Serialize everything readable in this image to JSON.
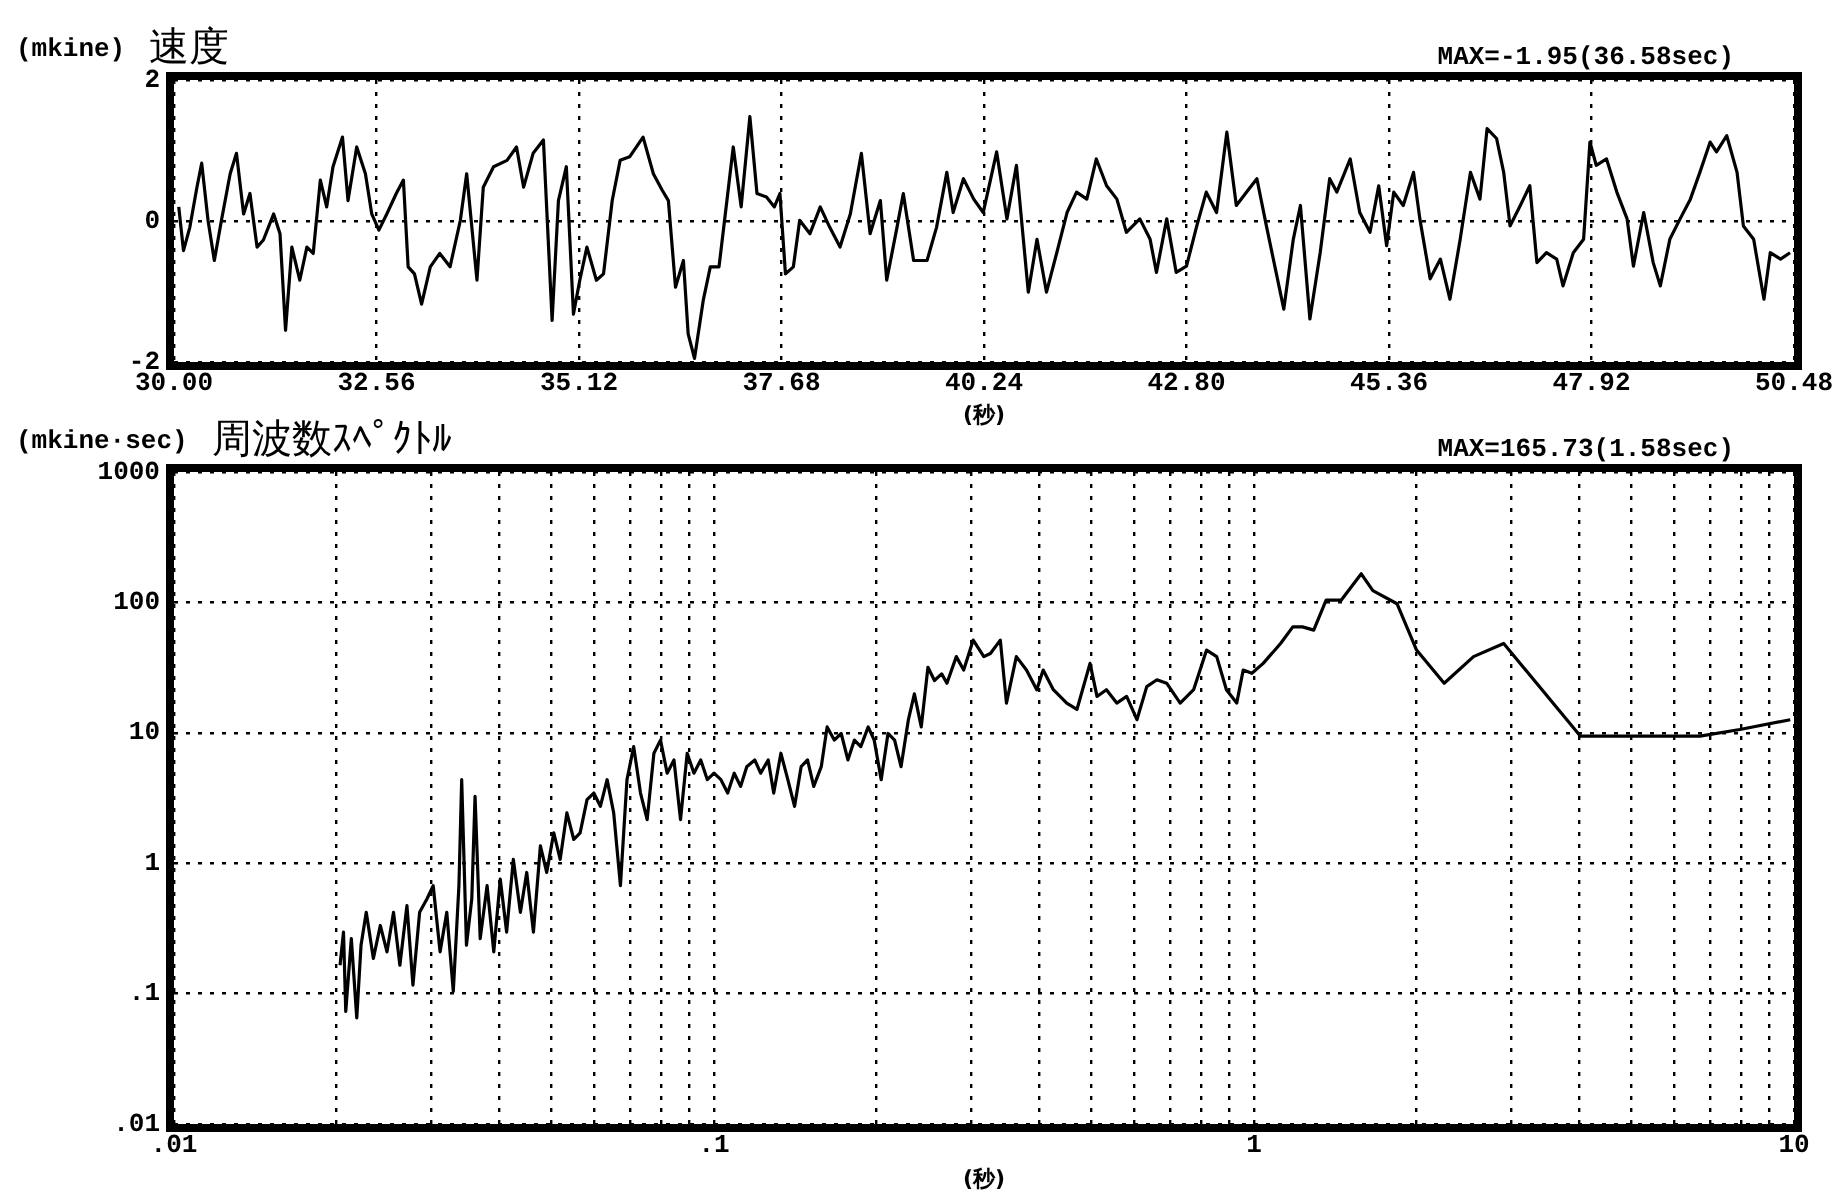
{
  "chart_data": [
    {
      "type": "line",
      "title": "速度",
      "ylabel": "(mkine)",
      "xlabel": "(秒)",
      "annotations": [
        "MAX=-1.95(36.58sec)"
      ],
      "grid": true,
      "legend": false,
      "marker": "none",
      "xlim": [
        30,
        50.48
      ],
      "xticks": [
        {
          "value": 30,
          "label": "30.00"
        },
        32.56,
        35.12,
        37.68,
        40.24,
        {
          "value": 42.8,
          "label": "42.80"
        },
        45.36,
        47.92,
        50.48
      ],
      "ylim": [
        -2,
        2
      ],
      "yticks": [
        -2,
        0,
        2
      ],
      "x": [
        30.06,
        30.12,
        30.2,
        30.29,
        30.35,
        30.43,
        30.51,
        30.6,
        30.71,
        30.79,
        30.88,
        30.96,
        31.05,
        31.13,
        31.26,
        31.34,
        31.41,
        31.49,
        31.59,
        31.68,
        31.76,
        31.85,
        31.93,
        32.01,
        32.13,
        32.2,
        32.31,
        32.42,
        32.5,
        32.59,
        32.69,
        32.81,
        32.9,
        32.96,
        33.04,
        33.13,
        33.24,
        33.36,
        33.49,
        33.62,
        33.7,
        33.83,
        33.91,
        34.04,
        34.21,
        34.33,
        34.42,
        34.54,
        34.67,
        34.78,
        34.86,
        34.96,
        35.05,
        35.13,
        35.22,
        35.34,
        35.43,
        35.54,
        35.64,
        35.76,
        35.93,
        36.06,
        36.17,
        36.25,
        36.34,
        36.44,
        36.5,
        36.58,
        36.69,
        36.78,
        36.89,
        36.99,
        37.07,
        37.17,
        37.28,
        37.37,
        37.49,
        37.59,
        37.66,
        37.73,
        37.83,
        37.91,
        38.04,
        38.17,
        38.29,
        38.42,
        38.55,
        38.69,
        38.8,
        38.93,
        39.01,
        39.14,
        39.22,
        39.35,
        39.52,
        39.64,
        39.77,
        39.85,
        39.98,
        40.11,
        40.23,
        40.4,
        40.53,
        40.65,
        40.8,
        40.91,
        41.03,
        41.16,
        41.29,
        41.41,
        41.54,
        41.66,
        41.79,
        41.92,
        42.04,
        42.21,
        42.34,
        42.42,
        42.55,
        42.67,
        42.8,
        42.93,
        43.05,
        43.18,
        43.31,
        43.43,
        43.56,
        43.69,
        43.81,
        44.03,
        44.15,
        44.24,
        44.36,
        44.49,
        44.61,
        44.7,
        44.87,
        44.99,
        45.12,
        45.23,
        45.33,
        45.42,
        45.54,
        45.67,
        45.75,
        45.88,
        46.01,
        46.13,
        46.26,
        46.39,
        46.51,
        46.6,
        46.72,
        46.81,
        46.89,
        47.02,
        47.14,
        47.23,
        47.35,
        47.48,
        47.56,
        47.69,
        47.82,
        47.9,
        47.98,
        48.11,
        48.24,
        48.37,
        48.45,
        48.58,
        48.7,
        48.79,
        48.91,
        49.04,
        49.17,
        49.29,
        49.42,
        49.5,
        49.63,
        49.76,
        49.84,
        49.97,
        50.1,
        50.18,
        50.31,
        50.43
      ],
      "series": [
        {
          "color": "#000000",
          "values": [
            0.2,
            -0.42,
            -0.09,
            0.48,
            0.82,
            0.01,
            -0.56,
            0.01,
            0.67,
            0.96,
            0.1,
            0.39,
            -0.37,
            -0.27,
            0.1,
            -0.18,
            -1.55,
            -0.37,
            -0.84,
            -0.37,
            -0.46,
            0.58,
            0.2,
            0.77,
            1.19,
            0.29,
            1.05,
            0.67,
            0.1,
            -0.13,
            0.1,
            0.39,
            0.58,
            -0.65,
            -0.75,
            -1.18,
            -0.65,
            -0.46,
            -0.65,
            0.01,
            0.67,
            -0.84,
            0.48,
            0.77,
            0.86,
            1.05,
            0.48,
            0.96,
            1.15,
            -1.41,
            0.29,
            0.77,
            -1.32,
            -0.84,
            -0.37,
            -0.84,
            -0.75,
            0.29,
            0.86,
            0.91,
            1.19,
            0.67,
            0.44,
            0.29,
            -0.94,
            -0.56,
            -1.6,
            -1.95,
            -1.13,
            -0.65,
            -0.65,
            0.29,
            1.05,
            0.2,
            1.48,
            0.39,
            0.34,
            0.2,
            0.39,
            -0.75,
            -0.65,
            0.01,
            -0.18,
            0.2,
            -0.09,
            -0.37,
            0.1,
            0.96,
            -0.18,
            0.29,
            -0.84,
            -0.09,
            0.39,
            -0.56,
            -0.56,
            -0.09,
            0.69,
            0.12,
            0.6,
            0.31,
            0.12,
            0.98,
            0.03,
            0.79,
            -1.01,
            -0.26,
            -1.01,
            -0.45,
            0.12,
            0.41,
            0.31,
            0.88,
            0.5,
            0.31,
            -0.16,
            0.03,
            -0.26,
            -0.73,
            0.03,
            -0.73,
            -0.64,
            -0.07,
            0.41,
            0.12,
            1.26,
            0.22,
            0.41,
            0.6,
            -0.07,
            -1.25,
            -0.26,
            0.22,
            -1.39,
            -0.45,
            0.6,
            0.41,
            0.88,
            0.12,
            -0.16,
            0.5,
            -0.35,
            0.41,
            0.22,
            0.69,
            0.03,
            -0.82,
            -0.54,
            -1.11,
            -0.26,
            0.69,
            0.31,
            1.31,
            1.17,
            0.69,
            -0.07,
            0.22,
            0.5,
            -0.59,
            -0.45,
            -0.54,
            -0.92,
            -0.45,
            -0.26,
            1.12,
            0.79,
            0.88,
            0.41,
            0.03,
            -0.64,
            0.12,
            -0.59,
            -0.92,
            -0.26,
            0.03,
            0.31,
            0.69,
            1.12,
            0.98,
            1.21,
            0.69,
            -0.07,
            -0.26,
            -1.11,
            -0.45,
            -0.54,
            -0.45
          ]
        }
      ]
    },
    {
      "type": "line",
      "title": "周波数ｽﾍﾟｸﾄﾙ",
      "ylabel": "(mkine·sec)",
      "xlabel": "(秒)",
      "annotations": [
        "MAX=165.73(1.58sec)"
      ],
      "grid": true,
      "legend": false,
      "marker": "none",
      "log": "xy",
      "xlim": [
        0.01,
        10
      ],
      "xticks": [
        {
          "value": 0.01,
          "label": ".01"
        },
        {
          "value": 0.02,
          "label": null
        },
        {
          "value": 0.03,
          "label": null
        },
        {
          "value": 0.04,
          "label": null
        },
        {
          "value": 0.05,
          "label": null
        },
        {
          "value": 0.06,
          "label": null
        },
        {
          "value": 0.07,
          "label": null
        },
        {
          "value": 0.08,
          "label": null
        },
        {
          "value": 0.09,
          "label": null
        },
        {
          "value": 0.1,
          "label": ".1"
        },
        {
          "value": 0.2,
          "label": null
        },
        {
          "value": 0.3,
          "label": null
        },
        {
          "value": 0.4,
          "label": null
        },
        {
          "value": 0.5,
          "label": null
        },
        {
          "value": 0.6,
          "label": null
        },
        {
          "value": 0.7,
          "label": null
        },
        {
          "value": 0.8,
          "label": null
        },
        {
          "value": 0.9,
          "label": null
        },
        1,
        {
          "value": 2,
          "label": null
        },
        {
          "value": 3,
          "label": null
        },
        {
          "value": 4,
          "label": null
        },
        {
          "value": 5,
          "label": null
        },
        {
          "value": 6,
          "label": null
        },
        {
          "value": 7,
          "label": null
        },
        {
          "value": 8,
          "label": null
        },
        {
          "value": 9,
          "label": null
        },
        10
      ],
      "ylim": [
        0.01,
        1000
      ],
      "yticks": [
        {
          "value": 0.01,
          "label": ".01"
        },
        {
          "value": 0.1,
          "label": ".1"
        },
        1,
        10,
        100,
        1000
      ],
      "x": [
        0.0203,
        0.0206,
        0.0208,
        0.0213,
        0.0218,
        0.0222,
        0.0227,
        0.0234,
        0.0241,
        0.0248,
        0.0255,
        0.0262,
        0.027,
        0.0277,
        0.0285,
        0.0294,
        0.0302,
        0.0311,
        0.032,
        0.0329,
        0.0337,
        0.0341,
        0.0348,
        0.0356,
        0.0361,
        0.0369,
        0.038,
        0.0391,
        0.0402,
        0.0413,
        0.0425,
        0.0438,
        0.045,
        0.0463,
        0.0477,
        0.049,
        0.0505,
        0.0519,
        0.0534,
        0.055,
        0.0565,
        0.0582,
        0.0599,
        0.0616,
        0.0634,
        0.0652,
        0.0671,
        0.069,
        0.071,
        0.0731,
        0.0752,
        0.0774,
        0.0796,
        0.0819,
        0.0843,
        0.0867,
        0.0892,
        0.0918,
        0.0945,
        0.0972,
        0.1,
        0.103,
        0.106,
        0.109,
        0.112,
        0.115,
        0.119,
        0.122,
        0.126,
        0.129,
        0.133,
        0.137,
        0.141,
        0.145,
        0.149,
        0.153,
        0.158,
        0.162,
        0.167,
        0.172,
        0.177,
        0.182,
        0.187,
        0.193,
        0.198,
        0.204,
        0.21,
        0.216,
        0.222,
        0.229,
        0.235,
        0.242,
        0.249,
        0.256,
        0.264,
        0.27,
        0.281,
        0.29,
        0.302,
        0.316,
        0.325,
        0.339,
        0.348,
        0.363,
        0.379,
        0.396,
        0.407,
        0.425,
        0.45,
        0.47,
        0.497,
        0.512,
        0.533,
        0.557,
        0.581,
        0.607,
        0.633,
        0.661,
        0.689,
        0.73,
        0.773,
        0.817,
        0.853,
        0.889,
        0.929,
        0.955,
        0.991,
        1.04,
        1.12,
        1.18,
        1.23,
        1.29,
        1.36,
        1.45,
        1.58,
        1.66,
        1.84,
        2,
        2.25,
        2.55,
        2.9,
        4.02,
        5.04,
        6.7,
        7.94,
        9.84
      ],
      "series": [
        {
          "color": "#000000",
          "values": [
            0.165,
            0.296,
            0.073,
            0.264,
            0.065,
            0.235,
            0.42,
            0.186,
            0.333,
            0.209,
            0.42,
            0.165,
            0.473,
            0.116,
            0.42,
            0.532,
            0.672,
            0.209,
            0.42,
            0.104,
            0.672,
            4.37,
            0.235,
            0.532,
            3.26,
            0.264,
            0.672,
            0.209,
            0.755,
            0.296,
            1.07,
            0.42,
            0.849,
            0.296,
            1.36,
            0.849,
            1.71,
            1.07,
            2.43,
            1.52,
            1.71,
            3.07,
            3.45,
            2.73,
            4.37,
            2.43,
            0.672,
            4.37,
            7.83,
            3.45,
            2.16,
            6.97,
            8.79,
            4.9,
            6.19,
            2.16,
            6.97,
            4.9,
            6.19,
            4.37,
            4.9,
            4.37,
            3.45,
            4.9,
            3.88,
            5.5,
            6.19,
            4.9,
            6.19,
            3.45,
            6.97,
            4.37,
            2.73,
            5.5,
            6.19,
            3.88,
            5.5,
            11.1,
            8.79,
            9.88,
            6.19,
            8.79,
            7.83,
            11.1,
            8.79,
            4.37,
            9.88,
            8.79,
            5.5,
            12.5,
            19.9,
            11.1,
            31.8,
            25.2,
            28.3,
            24,
            38.4,
            30.3,
            51.4,
            38.4,
            40.6,
            51.4,
            16.9,
            38.4,
            30.3,
            21.4,
            30.3,
            21.4,
            16.9,
            15.1,
            34.1,
            19,
            21.4,
            16.9,
            19,
            12.6,
            22.6,
            25.5,
            24,
            16.9,
            21.4,
            43.1,
            38.4,
            21.4,
            16.9,
            30.3,
            28.6,
            34.1,
            48.4,
            64.9,
            64.9,
            61.3,
            104,
            104,
            165.73,
            123,
            97.7,
            43.1,
            24,
            38.4,
            48.4,
            9.44,
            9.44,
            9.44,
            10.6,
            12.6
          ]
        }
      ]
    }
  ]
}
